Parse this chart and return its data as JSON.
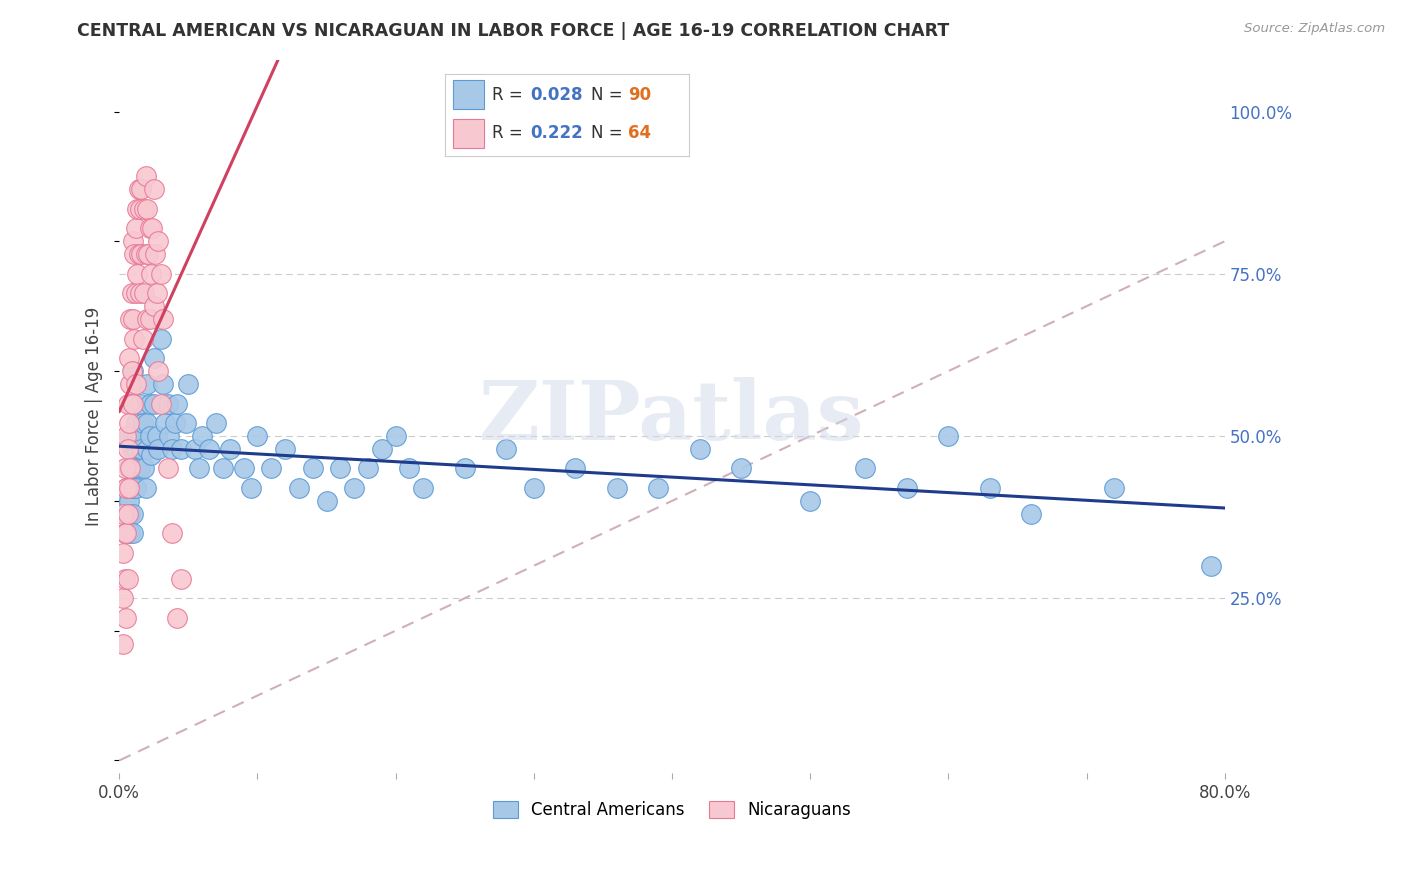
{
  "title": "CENTRAL AMERICAN VS NICARAGUAN IN LABOR FORCE | AGE 16-19 CORRELATION CHART",
  "source": "Source: ZipAtlas.com",
  "ylabel": "In Labor Force | Age 16-19",
  "xlim": [
    0.0,
    0.8
  ],
  "ylim": [
    -0.02,
    1.08
  ],
  "blue_color": "#a8c8e8",
  "blue_edge": "#5b9bd5",
  "pink_color": "#f8c8d0",
  "pink_edge": "#e87898",
  "trend_blue": "#1f3b8c",
  "trend_pink": "#d04060",
  "diagonal_color": "#d0b0b8",
  "watermark": "ZIPatlas",
  "ca_x": [
    0.005,
    0.005,
    0.005,
    0.005,
    0.007,
    0.007,
    0.007,
    0.008,
    0.008,
    0.008,
    0.009,
    0.009,
    0.01,
    0.01,
    0.01,
    0.01,
    0.01,
    0.01,
    0.01,
    0.012,
    0.012,
    0.012,
    0.013,
    0.013,
    0.015,
    0.015,
    0.015,
    0.016,
    0.017,
    0.018,
    0.019,
    0.02,
    0.02,
    0.02,
    0.022,
    0.022,
    0.023,
    0.025,
    0.025,
    0.027,
    0.028,
    0.03,
    0.032,
    0.033,
    0.035,
    0.036,
    0.038,
    0.04,
    0.042,
    0.045,
    0.048,
    0.05,
    0.055,
    0.058,
    0.06,
    0.065,
    0.07,
    0.075,
    0.08,
    0.09,
    0.095,
    0.1,
    0.11,
    0.12,
    0.13,
    0.14,
    0.15,
    0.16,
    0.17,
    0.18,
    0.19,
    0.2,
    0.21,
    0.22,
    0.25,
    0.28,
    0.3,
    0.33,
    0.36,
    0.39,
    0.42,
    0.45,
    0.5,
    0.54,
    0.57,
    0.6,
    0.63,
    0.66,
    0.72,
    0.79
  ],
  "ca_y": [
    0.42,
    0.4,
    0.38,
    0.35,
    0.5,
    0.45,
    0.4,
    0.42,
    0.38,
    0.35,
    0.55,
    0.48,
    0.6,
    0.55,
    0.5,
    0.45,
    0.42,
    0.38,
    0.35,
    0.52,
    0.48,
    0.42,
    0.5,
    0.45,
    0.55,
    0.5,
    0.45,
    0.48,
    0.52,
    0.45,
    0.42,
    0.58,
    0.52,
    0.48,
    0.55,
    0.5,
    0.47,
    0.62,
    0.55,
    0.5,
    0.48,
    0.65,
    0.58,
    0.52,
    0.55,
    0.5,
    0.48,
    0.52,
    0.55,
    0.48,
    0.52,
    0.58,
    0.48,
    0.45,
    0.5,
    0.48,
    0.52,
    0.45,
    0.48,
    0.45,
    0.42,
    0.5,
    0.45,
    0.48,
    0.42,
    0.45,
    0.4,
    0.45,
    0.42,
    0.45,
    0.48,
    0.5,
    0.45,
    0.42,
    0.45,
    0.48,
    0.42,
    0.45,
    0.42,
    0.42,
    0.48,
    0.45,
    0.4,
    0.45,
    0.42,
    0.5,
    0.42,
    0.38,
    0.42,
    0.3
  ],
  "ni_x": [
    0.003,
    0.003,
    0.003,
    0.003,
    0.004,
    0.004,
    0.004,
    0.005,
    0.005,
    0.005,
    0.005,
    0.006,
    0.006,
    0.006,
    0.006,
    0.007,
    0.007,
    0.007,
    0.008,
    0.008,
    0.008,
    0.009,
    0.009,
    0.01,
    0.01,
    0.01,
    0.011,
    0.011,
    0.012,
    0.012,
    0.012,
    0.013,
    0.013,
    0.014,
    0.014,
    0.015,
    0.015,
    0.016,
    0.016,
    0.017,
    0.018,
    0.018,
    0.019,
    0.019,
    0.02,
    0.02,
    0.021,
    0.022,
    0.022,
    0.023,
    0.024,
    0.025,
    0.025,
    0.026,
    0.027,
    0.028,
    0.028,
    0.03,
    0.03,
    0.032,
    0.035,
    0.038,
    0.042,
    0.045
  ],
  "ni_y": [
    0.38,
    0.32,
    0.25,
    0.18,
    0.45,
    0.35,
    0.28,
    0.5,
    0.42,
    0.35,
    0.22,
    0.55,
    0.48,
    0.38,
    0.28,
    0.62,
    0.52,
    0.42,
    0.68,
    0.58,
    0.45,
    0.72,
    0.6,
    0.8,
    0.68,
    0.55,
    0.78,
    0.65,
    0.82,
    0.72,
    0.58,
    0.85,
    0.75,
    0.88,
    0.78,
    0.85,
    0.72,
    0.88,
    0.78,
    0.65,
    0.85,
    0.72,
    0.9,
    0.78,
    0.85,
    0.68,
    0.78,
    0.82,
    0.68,
    0.75,
    0.82,
    0.88,
    0.7,
    0.78,
    0.72,
    0.8,
    0.6,
    0.75,
    0.55,
    0.68,
    0.45,
    0.35,
    0.22,
    0.28
  ]
}
